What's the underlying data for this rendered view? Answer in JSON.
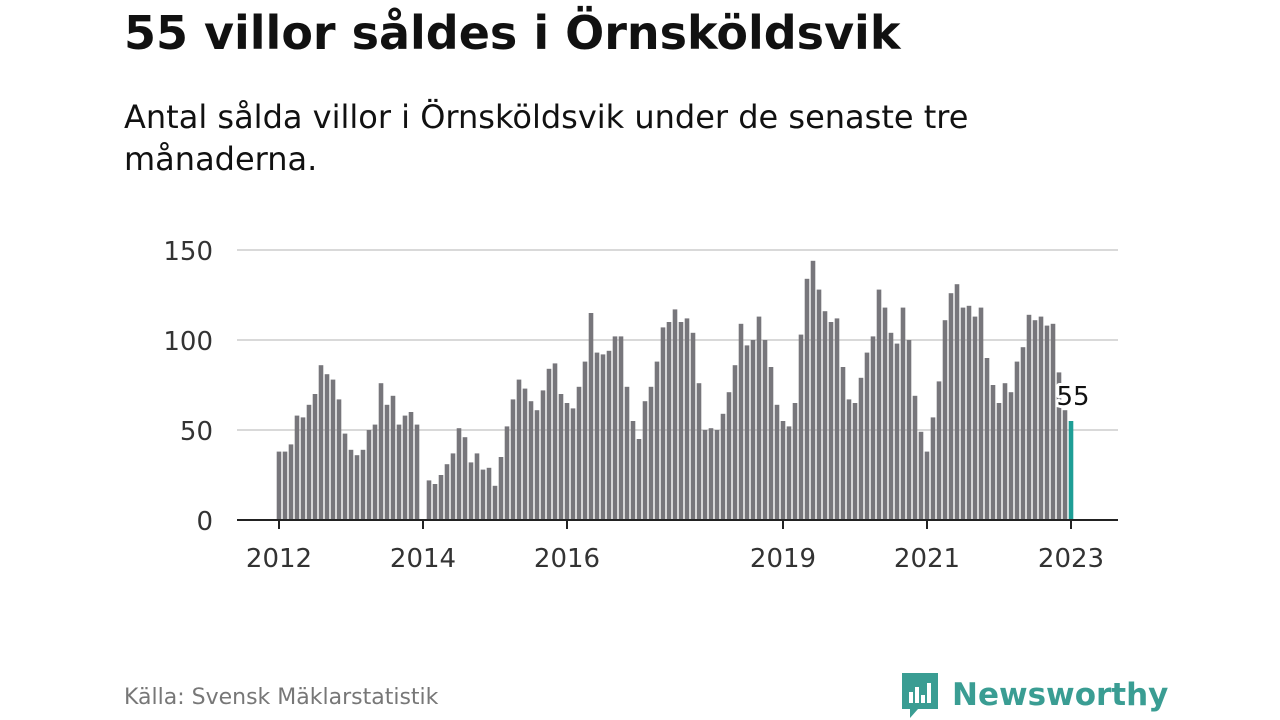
{
  "header": {
    "title": "55 villor såldes i Örnsköldsvik",
    "subtitle": "Antal sålda villor i Örnsköldsvik under de senaste tre månaderna."
  },
  "footer": {
    "source": "Källa: Svensk Mäklarstatistik",
    "brand": "Newsworthy"
  },
  "colors": {
    "bar": "#77767b",
    "highlight": "#1e9e96",
    "grid": "#d9d9d9",
    "brand": "#3a9d93"
  },
  "chart_data": {
    "type": "bar",
    "title": "",
    "xlabel": "",
    "ylabel": "",
    "ylim": [
      0,
      150
    ],
    "yticks": [
      0,
      50,
      100,
      150
    ],
    "x_ticks": [
      {
        "label": "2012",
        "index": 0
      },
      {
        "label": "2014",
        "index": 24
      },
      {
        "label": "2016",
        "index": 48
      },
      {
        "label": "2019",
        "index": 84
      },
      {
        "label": "2021",
        "index": 108
      },
      {
        "label": "2023",
        "index": 132
      }
    ],
    "highlight_index": 132,
    "annotation": {
      "text": "55",
      "index": 132
    },
    "period": {
      "start": "2012-01",
      "end": "2023-01",
      "frequency": "monthly"
    },
    "values": [
      38,
      38,
      42,
      58,
      57,
      64,
      70,
      86,
      81,
      78,
      67,
      48,
      39,
      36,
      39,
      50,
      53,
      76,
      64,
      69,
      53,
      58,
      60,
      53,
      null,
      22,
      20,
      25,
      31,
      37,
      51,
      46,
      32,
      37,
      28,
      29,
      19,
      35,
      52,
      67,
      78,
      73,
      66,
      61,
      72,
      84,
      87,
      70,
      65,
      62,
      74,
      88,
      115,
      93,
      92,
      94,
      102,
      102,
      74,
      55,
      45,
      66,
      74,
      88,
      107,
      110,
      117,
      110,
      112,
      104,
      76,
      50,
      51,
      50,
      59,
      71,
      86,
      109,
      97,
      100,
      113,
      100,
      85,
      64,
      55,
      52,
      65,
      103,
      134,
      144,
      128,
      116,
      110,
      112,
      85,
      67,
      65,
      79,
      93,
      102,
      128,
      118,
      104,
      98,
      118,
      100,
      69,
      49,
      38,
      57,
      77,
      111,
      126,
      131,
      118,
      119,
      113,
      118,
      90,
      75,
      65,
      76,
      71,
      88,
      96,
      114,
      111,
      113,
      108,
      109,
      82,
      61,
      55
    ]
  }
}
